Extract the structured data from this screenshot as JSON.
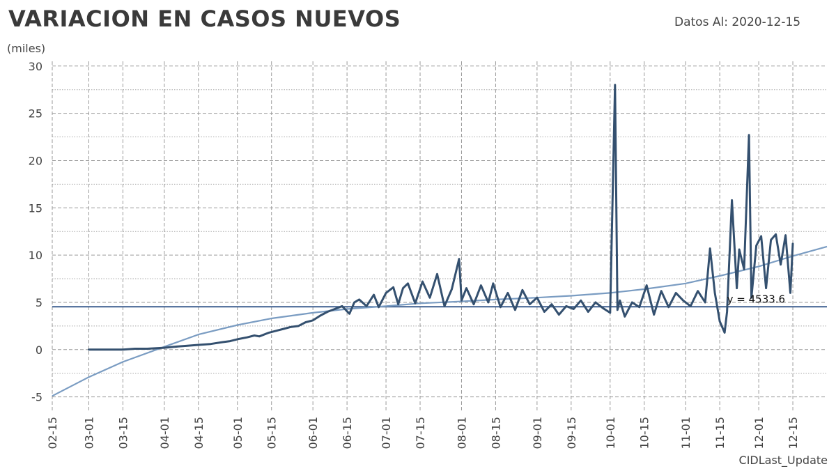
{
  "header": {
    "title": "VARIACION EN CASOS NUEVOS",
    "date_line": "Datos Al: 2020-12-15"
  },
  "chart_data": {
    "type": "line",
    "ylabel": "(miles)",
    "xlabel": "CIDLast_Update",
    "ylim": [
      -6.5,
      30.5
    ],
    "y_ticks": [
      -5,
      0,
      5,
      10,
      15,
      20,
      25,
      30
    ],
    "x_range": [
      "2020-02-15",
      "2020-12-29"
    ],
    "x_ticks": [
      "02-15",
      "03-01",
      "03-15",
      "04-01",
      "04-15",
      "05-01",
      "05-15",
      "06-01",
      "06-15",
      "07-01",
      "07-15",
      "08-01",
      "08-15",
      "09-01",
      "09-15",
      "10-01",
      "10-15",
      "11-01",
      "11-15",
      "12-01",
      "12-15"
    ],
    "grid": true,
    "colors": {
      "series": "#34506f",
      "trend": "#7a9cc2",
      "mean": "#3d5f8f",
      "grid": "#9a9a9a"
    },
    "series": [
      {
        "x": [
          "2020-03-01",
          "2020-03-15",
          "2020-03-20",
          "2020-03-25",
          "2020-04-01",
          "2020-04-05",
          "2020-04-10",
          "2020-04-15",
          "2020-04-20",
          "2020-04-25",
          "2020-04-28",
          "2020-05-01",
          "2020-05-05",
          "2020-05-08",
          "2020-05-10",
          "2020-05-14",
          "2020-05-17",
          "2020-05-20",
          "2020-05-23",
          "2020-05-26",
          "2020-05-29",
          "2020-06-01",
          "2020-06-04",
          "2020-06-07",
          "2020-06-10",
          "2020-06-13",
          "2020-06-16",
          "2020-06-18",
          "2020-06-20",
          "2020-06-23",
          "2020-06-26",
          "2020-06-28",
          "2020-07-01",
          "2020-07-04",
          "2020-07-06",
          "2020-07-08",
          "2020-07-10",
          "2020-07-13",
          "2020-07-16",
          "2020-07-19",
          "2020-07-22",
          "2020-07-25",
          "2020-07-28",
          "2020-07-31",
          "2020-08-01",
          "2020-08-03",
          "2020-08-06",
          "2020-08-09",
          "2020-08-12",
          "2020-08-14",
          "2020-08-17",
          "2020-08-20",
          "2020-08-23",
          "2020-08-26",
          "2020-08-29",
          "2020-09-01",
          "2020-09-04",
          "2020-09-07",
          "2020-09-10",
          "2020-09-13",
          "2020-09-16",
          "2020-09-19",
          "2020-09-22",
          "2020-09-25",
          "2020-09-28",
          "2020-10-01",
          "2020-10-03",
          "2020-10-04",
          "2020-10-05",
          "2020-10-07",
          "2020-10-10",
          "2020-10-13",
          "2020-10-16",
          "2020-10-19",
          "2020-10-22",
          "2020-10-25",
          "2020-10-28",
          "2020-10-31",
          "2020-11-03",
          "2020-11-06",
          "2020-11-09",
          "2020-11-11",
          "2020-11-13",
          "2020-11-15",
          "2020-11-17",
          "2020-11-18",
          "2020-11-20",
          "2020-11-22",
          "2020-11-23",
          "2020-11-25",
          "2020-11-27",
          "2020-11-28",
          "2020-11-30",
          "2020-12-02",
          "2020-12-04",
          "2020-12-06",
          "2020-12-08",
          "2020-12-10",
          "2020-12-12",
          "2020-12-14",
          "2020-12-15"
        ],
        "y": [
          0,
          0,
          0.1,
          0.1,
          0.2,
          0.3,
          0.4,
          0.5,
          0.6,
          0.8,
          0.9,
          1.1,
          1.3,
          1.5,
          1.4,
          1.8,
          2.0,
          2.2,
          2.4,
          2.5,
          2.9,
          3.1,
          3.6,
          4.0,
          4.3,
          4.6,
          3.8,
          5.0,
          5.3,
          4.6,
          5.8,
          4.5,
          6.0,
          6.6,
          4.8,
          6.5,
          7.0,
          4.9,
          7.2,
          5.5,
          8.0,
          4.6,
          6.4,
          9.6,
          5.2,
          6.5,
          4.8,
          6.8,
          5.0,
          7.0,
          4.5,
          6.0,
          4.2,
          6.3,
          4.8,
          5.5,
          4.0,
          4.8,
          3.7,
          4.6,
          4.3,
          5.2,
          4.0,
          5.0,
          4.4,
          3.9,
          28.0,
          4.2,
          5.2,
          3.5,
          5.0,
          4.5,
          6.8,
          3.7,
          6.2,
          4.5,
          6.0,
          5.2,
          4.6,
          6.2,
          5.0,
          10.7,
          6.0,
          3.0,
          1.8,
          4.0,
          15.8,
          6.5,
          10.6,
          8.5,
          22.7,
          5.5,
          11.0,
          12.0,
          6.5,
          11.6,
          12.2,
          9.0,
          12.1,
          6.0,
          11.2
        ]
      },
      {
        "x": [
          "2020-02-15",
          "2020-03-01",
          "2020-03-15",
          "2020-04-01",
          "2020-04-15",
          "2020-05-01",
          "2020-05-15",
          "2020-06-01",
          "2020-06-15",
          "2020-07-01",
          "2020-07-15",
          "2020-08-01",
          "2020-08-15",
          "2020-09-01",
          "2020-09-15",
          "2020-10-01",
          "2020-10-15",
          "2020-11-01",
          "2020-11-15",
          "2020-12-01",
          "2020-12-15",
          "2020-12-29"
        ],
        "y": [
          -4.9,
          -2.9,
          -1.3,
          0.3,
          1.6,
          2.6,
          3.3,
          3.9,
          4.3,
          4.6,
          4.9,
          5.1,
          5.3,
          5.5,
          5.7,
          6.0,
          6.4,
          7.0,
          7.8,
          8.8,
          9.9,
          10.9
        ]
      }
    ],
    "mean_value": 4.5336,
    "annotation": "y = 4533.6"
  }
}
